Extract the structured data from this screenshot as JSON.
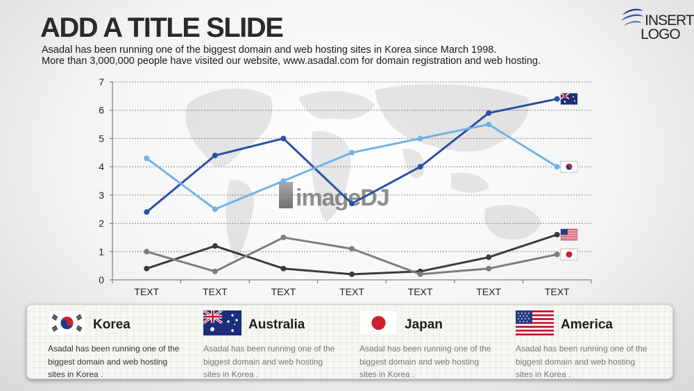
{
  "slide": {
    "title": "ADD A TITLE SLIDE",
    "subtitle_line1": "Asadal has been running one of the biggest domain and web hosting sites in Korea since March 1998.",
    "subtitle_line2": "More than 3,000,000 people have visited our website,  www.asadal.com for domain registration and web hosting."
  },
  "logo": {
    "line1": "INSERT",
    "line2": "LOGO"
  },
  "watermark": "imageDJ",
  "chart_data": {
    "type": "line",
    "categories": [
      "TEXT",
      "TEXT",
      "TEXT",
      "TEXT",
      "TEXT",
      "TEXT",
      "TEXT"
    ],
    "ylim": [
      0,
      7
    ],
    "yticks": [
      0,
      1,
      2,
      3,
      4,
      5,
      6,
      7
    ],
    "grid": true,
    "series": [
      {
        "flag": "australia-flag-icon",
        "color": "#2a4fa6",
        "values": [
          2.4,
          4.4,
          5.0,
          2.7,
          4.0,
          5.9,
          6.4
        ]
      },
      {
        "flag": "korea-flag-icon",
        "color": "#6fb3e8",
        "values": [
          4.3,
          2.5,
          3.5,
          4.5,
          5.0,
          5.5,
          4.0
        ]
      },
      {
        "flag": "usa-flag-icon",
        "color": "#3a3a3a",
        "values": [
          0.4,
          1.2,
          0.4,
          0.2,
          0.3,
          0.8,
          1.6
        ]
      },
      {
        "flag": "japan-flag-icon",
        "color": "#7d7d7d",
        "values": [
          1.0,
          0.3,
          1.5,
          1.1,
          0.2,
          0.4,
          0.9
        ]
      }
    ]
  },
  "cards": [
    {
      "name": "Korea",
      "flag": "korea-flag-icon",
      "desc": "Asadal has been running one of the biggest domain and web hosting sites in Korea ."
    },
    {
      "name": "Australia",
      "flag": "australia-flag-icon",
      "desc": "Asadal has been running one of the biggest domain and web hosting sites in Korea ."
    },
    {
      "name": "Japan",
      "flag": "japan-flag-icon",
      "desc": "Asadal has been running one of the biggest domain and web hosting sites in Korea ."
    },
    {
      "name": "America",
      "flag": "usa-flag-icon",
      "desc": "Asadal has been running one of the biggest domain and web hosting sites in Korea ."
    }
  ]
}
